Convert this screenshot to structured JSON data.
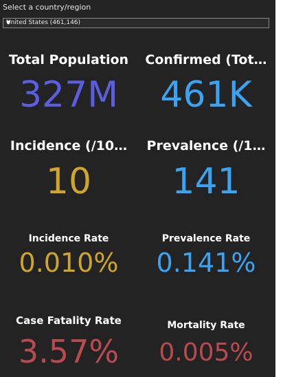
{
  "header": {
    "label": "Select a country/region",
    "dropdown": {
      "selected": "United States (461,146)"
    }
  },
  "tiles": [
    {
      "title": "Total Population",
      "value": "327M"
    },
    {
      "title": "Confirmed (Tot…",
      "value": "461K"
    },
    {
      "title": "Incidence  (/10…",
      "value": "10"
    },
    {
      "title": "Prevalence  (/1…",
      "value": "141"
    },
    {
      "title": "Incidence Rate",
      "value": "0.010%"
    },
    {
      "title": "Prevalence Rate",
      "value": "0.141%"
    },
    {
      "title": "Case Fatality Rate",
      "value": "3.57%"
    },
    {
      "title": "Mortality Rate",
      "value": "0.005%"
    }
  ]
}
